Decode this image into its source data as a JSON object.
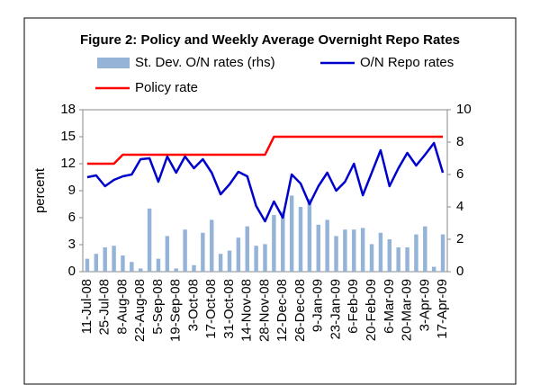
{
  "chart_data": {
    "type": "combo",
    "title": "Figure 2: Policy and  Weekly Average Overnight Repo Rates",
    "y_label": "percent",
    "categories": [
      "11-Jul-08",
      null,
      "25-Jul-08",
      null,
      "8-Aug-08",
      null,
      "22-Aug-08",
      null,
      "5-Sep-08",
      null,
      "19-Sep-08",
      null,
      "3-Oct-08",
      null,
      "17-Oct-08",
      null,
      "31-Oct-08",
      null,
      "14-Nov-08",
      null,
      "28-Nov-08",
      null,
      "12-Dec-08",
      null,
      "26-Dec-08",
      null,
      "9-Jan-09",
      null,
      "23-Jan-09",
      null,
      "6-Feb-09",
      null,
      "20-Feb-09",
      null,
      "6-Mar-09",
      null,
      "20-Mar-09",
      null,
      "3-Apr-09",
      null,
      "17-Apr-09"
    ],
    "series": [
      {
        "name": "St. Dev. O/N rates (rhs)",
        "type": "bar",
        "axis": "y2",
        "color": "#95b3d7",
        "values": [
          0.8,
          1.1,
          1.5,
          1.6,
          1.0,
          0.6,
          0.2,
          3.9,
          0.8,
          2.2,
          0.2,
          2.6,
          0.4,
          2.4,
          3.2,
          1.1,
          1.3,
          2.1,
          2.8,
          1.6,
          1.7,
          3.5,
          3.7,
          4.7,
          4.0,
          4.5,
          2.9,
          3.2,
          2.2,
          2.6,
          2.6,
          2.7,
          1.7,
          2.4,
          2.0,
          1.5,
          1.5,
          2.3,
          2.8,
          0.3,
          2.3
        ]
      },
      {
        "name": "O/N Repo rates",
        "type": "line",
        "color": "#0000cc",
        "values": [
          10.5,
          10.7,
          9.5,
          10.2,
          10.6,
          10.8,
          12.5,
          12.6,
          10,
          12.8,
          11,
          12.8,
          11.5,
          12.5,
          11,
          8.6,
          9.7,
          11.1,
          10.6,
          7.3,
          5.6,
          7.8,
          6,
          10.8,
          9.8,
          7.5,
          9.5,
          11,
          9,
          10,
          12,
          8.5,
          11,
          13.5,
          9.5,
          11.5,
          13.2,
          11.8,
          13,
          14.3,
          11
        ]
      },
      {
        "name": "Policy rate",
        "type": "line",
        "color": "#ff0000",
        "values": [
          12,
          12,
          12,
          12,
          13,
          13,
          13,
          13,
          13,
          13,
          13,
          13,
          13,
          13,
          13,
          13,
          13,
          13,
          13,
          13,
          13,
          15,
          15,
          15,
          15,
          15,
          15,
          15,
          15,
          15,
          15,
          15,
          15,
          15,
          15,
          15,
          15,
          15,
          15,
          15,
          15
        ]
      }
    ],
    "ylim": [
      0,
      18
    ],
    "yticks": [
      0,
      3,
      6,
      9,
      12,
      15,
      18
    ],
    "y2lim": [
      0,
      10
    ],
    "y2ticks": [
      0,
      2,
      4,
      6,
      8,
      10
    ],
    "grid": false
  }
}
